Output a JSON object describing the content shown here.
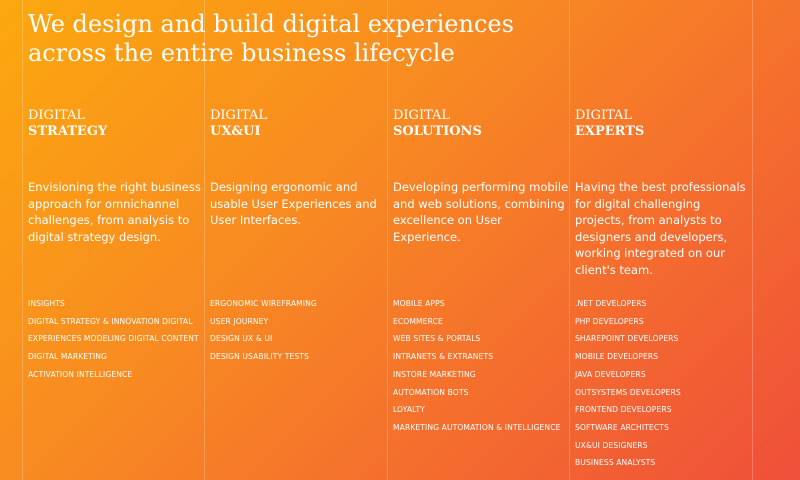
{
  "headline": [
    "We design and build digital experiences",
    "across the entire business lifecycle"
  ],
  "columns": [
    {
      "title": [
        "DIGITAL",
        "STRATEGY"
      ],
      "description": "Envisioning the right business approach for omnichannel challenges, from analysis to digital strategy design.",
      "items": [
        "INSIGHTS",
        "DIGITAL STRATEGY & INNOVATION DIGITAL",
        "EXPERIENCES MODELING DIGITAL CONTENT",
        "DIGITAL MARKETING",
        "ACTIVATION INTELLIGENCE"
      ]
    },
    {
      "title": [
        "DIGITAL",
        "UX&UI"
      ],
      "description": "Designing ergonomic and usable User Experiences and User Interfaces.",
      "items": [
        "ERGONOMIC WIREFRAMING",
        "USER JOURNEY",
        "DESIGN UX & UI",
        "DESIGN USABILITY TESTS"
      ]
    },
    {
      "title": [
        "DIGITAL",
        "SOLUTIONS"
      ],
      "description": "Developing performing mobile and web solutions, combining excellence on User Experience.",
      "items": [
        "MOBILE APPS",
        "ECOMMERCE",
        "WEB SITES & PORTALS",
        "INTRANETS & EXTRANETS",
        "INSTORE MARKETING",
        "AUTOMATION BOTS",
        "LOYALTY",
        "MARKETING AUTOMATION & INTELLIGENCE"
      ]
    },
    {
      "title": [
        "DIGITAL",
        "EXPERTS"
      ],
      "description": "Having the best professionals for digital challenging projects, from analysts to designers and developers, working integrated on our client's team.",
      "items": [
        ".NET DEVELOPERS",
        "PHP DEVELOPERS",
        "SHAREPOINT DEVELOPERS",
        "MOBILE DEVELOPERS",
        "JAVA DEVELOPERS",
        "OUTSYSTEMS DEVELOPERS",
        "FRONTEND DEVELOPERS",
        "SOFTWARE ARCHITECTS",
        "UX&UI DESIGNERS",
        "BUSINESS ANALYSTS"
      ]
    }
  ]
}
